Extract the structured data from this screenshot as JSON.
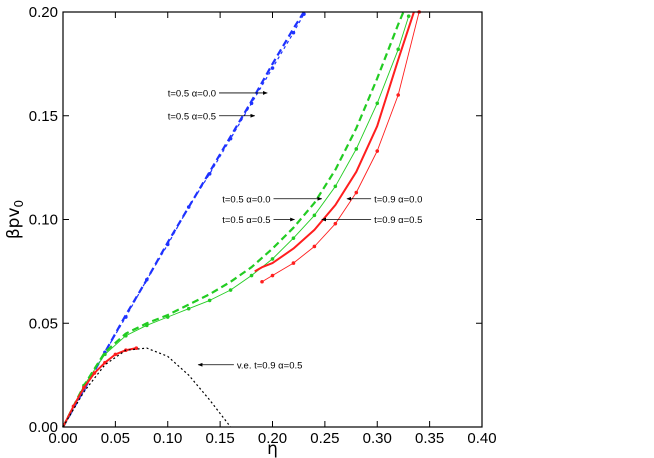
{
  "chart_data": {
    "type": "line",
    "title": "",
    "xlabel": "η",
    "ylabel": "βpv₀",
    "ylabel_main": "βpv",
    "ylabel_sub": "0",
    "xlim": [
      0.0,
      0.4
    ],
    "ylim": [
      0.0,
      0.2
    ],
    "x_ticks": [
      0.0,
      0.05,
      0.1,
      0.15,
      0.2,
      0.25,
      0.3,
      0.35,
      0.4
    ],
    "x_tick_labels": [
      "0.00",
      "0.05",
      "0.10",
      "0.15",
      "0.20",
      "0.25",
      "0.30",
      "0.35",
      "0.40"
    ],
    "y_ticks": [
      0.0,
      0.05,
      0.1,
      0.15,
      0.2
    ],
    "y_tick_labels": [
      "0.00",
      "0.05",
      "0.10",
      "0.15",
      "0.20"
    ],
    "grid": false,
    "legend": "none",
    "series": [
      {
        "label": "t=0.5 α=0.0",
        "group": "blue",
        "color": "#1e32ff",
        "style": "dashed",
        "marker": "none",
        "x": [
          0.0,
          0.02,
          0.04,
          0.06,
          0.08,
          0.1,
          0.12,
          0.14,
          0.16,
          0.18,
          0.2,
          0.22,
          0.23
        ],
        "y": [
          0.0,
          0.018,
          0.036,
          0.054,
          0.071,
          0.089,
          0.106,
          0.123,
          0.14,
          0.157,
          0.175,
          0.192,
          0.2
        ]
      },
      {
        "label": "t=0.5 α=0.5",
        "group": "blue",
        "color": "#1e32ff",
        "style": "dotted",
        "marker": "dot",
        "x": [
          0.0,
          0.02,
          0.04,
          0.06,
          0.08,
          0.1,
          0.12,
          0.14,
          0.16,
          0.18,
          0.2,
          0.22,
          0.23
        ],
        "y": [
          0.0,
          0.018,
          0.036,
          0.053,
          0.071,
          0.088,
          0.106,
          0.122,
          0.139,
          0.156,
          0.173,
          0.19,
          0.199
        ]
      },
      {
        "label": "t=0.5 α=0.0",
        "group": "green",
        "color": "#22cc22",
        "style": "dashed",
        "marker": "none",
        "x": [
          0.0,
          0.02,
          0.04,
          0.06,
          0.08,
          0.1,
          0.12,
          0.14,
          0.16,
          0.18,
          0.2,
          0.22,
          0.24,
          0.26,
          0.28,
          0.3,
          0.32,
          0.325
        ],
        "y": [
          0.0,
          0.02,
          0.036,
          0.045,
          0.05,
          0.054,
          0.059,
          0.064,
          0.07,
          0.077,
          0.086,
          0.096,
          0.108,
          0.124,
          0.144,
          0.168,
          0.194,
          0.2
        ]
      },
      {
        "label": "t=0.5 α=0.5",
        "group": "green",
        "color": "#22cc22",
        "style": "thin",
        "marker": "dot",
        "x": [
          0.0,
          0.02,
          0.04,
          0.06,
          0.08,
          0.1,
          0.12,
          0.14,
          0.16,
          0.18,
          0.2,
          0.22,
          0.24,
          0.26,
          0.28,
          0.3,
          0.32,
          0.33
        ],
        "y": [
          0.0,
          0.02,
          0.035,
          0.044,
          0.049,
          0.053,
          0.057,
          0.061,
          0.066,
          0.073,
          0.081,
          0.091,
          0.102,
          0.116,
          0.134,
          0.156,
          0.182,
          0.198
        ]
      },
      {
        "label": "t=0.9 α=0.0",
        "group": "red",
        "color": "#ff1e1e",
        "style": "solid",
        "marker": "none",
        "x": [
          0.0,
          0.01,
          0.02,
          0.03,
          0.04,
          0.05,
          0.06,
          0.07
        ],
        "y": [
          0.0,
          0.01,
          0.019,
          0.026,
          0.031,
          0.035,
          0.037,
          0.038
        ],
        "x2": [
          0.183,
          0.19,
          0.2,
          0.22,
          0.24,
          0.26,
          0.28,
          0.3,
          0.32,
          0.335
        ],
        "y2": [
          0.075,
          0.077,
          0.079,
          0.086,
          0.095,
          0.107,
          0.123,
          0.145,
          0.177,
          0.2
        ]
      },
      {
        "label": "t=0.9 α=0.5",
        "group": "red",
        "color": "#ff1e1e",
        "style": "thin",
        "marker": "dot",
        "x": [
          0.0,
          0.01,
          0.02,
          0.03,
          0.04,
          0.05,
          0.06,
          0.07
        ],
        "y": [
          0.0,
          0.01,
          0.019,
          0.026,
          0.031,
          0.035,
          0.037,
          0.038
        ],
        "x2": [
          0.19,
          0.2,
          0.22,
          0.24,
          0.26,
          0.28,
          0.3,
          0.32,
          0.34
        ],
        "y2": [
          0.07,
          0.073,
          0.079,
          0.087,
          0.098,
          0.113,
          0.133,
          0.16,
          0.2
        ]
      },
      {
        "label": "v.e. t=0.9 α=0.5",
        "group": "black",
        "color": "#000000",
        "style": "dotted",
        "marker": "none",
        "x": [
          0.0,
          0.02,
          0.04,
          0.06,
          0.08,
          0.1,
          0.12,
          0.14,
          0.16
        ],
        "y": [
          0.0,
          0.017,
          0.03,
          0.037,
          0.038,
          0.034,
          0.025,
          0.013,
          0.0
        ]
      }
    ],
    "annotations": [
      {
        "text": "t=0.5 α=0.0",
        "x": 0.1,
        "y": 0.161,
        "arrow_to": [
          0.195,
          0.161
        ]
      },
      {
        "text": "t=0.5 α=0.5",
        "x": 0.1,
        "y": 0.15,
        "arrow_to": [
          0.183,
          0.15
        ]
      },
      {
        "text": "t=0.5 α=0.0",
        "x": 0.152,
        "y": 0.11,
        "arrow_to": [
          0.247,
          0.11
        ]
      },
      {
        "text": "t=0.5 α=0.5",
        "x": 0.152,
        "y": 0.1,
        "arrow_to": [
          0.221,
          0.1
        ]
      },
      {
        "text": "t=0.9 α=0.0",
        "x": 0.297,
        "y": 0.11,
        "arrow_to": [
          0.271,
          0.11
        ]
      },
      {
        "text": "t=0.9 α=0.5",
        "x": 0.297,
        "y": 0.1,
        "arrow_to": [
          0.247,
          0.1
        ]
      },
      {
        "text": "v.e. t=0.9 α=0.5",
        "x": 0.166,
        "y": 0.03,
        "arrow_to": [
          0.129,
          0.03
        ]
      }
    ]
  }
}
